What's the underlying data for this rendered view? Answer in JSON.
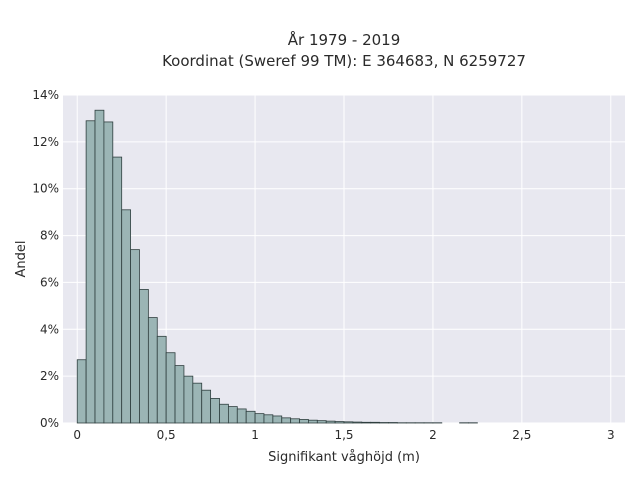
{
  "chart_data": {
    "type": "bar",
    "title": "År 1979 - 2019",
    "subtitle": "Koordinat (Sweref 99 TM): E 364683, N 6259727",
    "xlabel": "Signifikant våghöjd (m)",
    "ylabel": "Andel",
    "xlim": [
      -0.08,
      3.08
    ],
    "ylim": [
      0,
      14
    ],
    "x_ticks": [
      0,
      0.5,
      1,
      1.5,
      2,
      2.5,
      3
    ],
    "x_tick_labels": [
      "0",
      "0,5",
      "1",
      "1,5",
      "2",
      "2,5",
      "3"
    ],
    "y_ticks": [
      0,
      2,
      4,
      6,
      8,
      10,
      12,
      14
    ],
    "y_tick_labels": [
      "0%",
      "2%",
      "4%",
      "6%",
      "8%",
      "10%",
      "12%",
      "14%"
    ],
    "grid": true,
    "bin_width": 0.05,
    "bin_starts": [
      0,
      0.05,
      0.1,
      0.15,
      0.2,
      0.25,
      0.3,
      0.35,
      0.4,
      0.45,
      0.5,
      0.55,
      0.6,
      0.65,
      0.7,
      0.75,
      0.8,
      0.85,
      0.9,
      0.95,
      1.0,
      1.05,
      1.1,
      1.15,
      1.2,
      1.25,
      1.3,
      1.35,
      1.4,
      1.45,
      1.5,
      1.55,
      1.6,
      1.65,
      1.7,
      1.75,
      1.8,
      1.85,
      1.9,
      1.95,
      2.0,
      2.05,
      2.1,
      2.15,
      2.2,
      2.25,
      2.3,
      2.35
    ],
    "values": [
      2.7,
      12.9,
      13.35,
      12.85,
      11.35,
      9.1,
      7.4,
      5.7,
      4.5,
      3.7,
      3.0,
      2.45,
      2.0,
      1.7,
      1.4,
      1.05,
      0.8,
      0.7,
      0.6,
      0.5,
      0.4,
      0.35,
      0.3,
      0.22,
      0.18,
      0.15,
      0.12,
      0.1,
      0.08,
      0.06,
      0.05,
      0.04,
      0.03,
      0.03,
      0.02,
      0.02,
      0.01,
      0.01,
      0.01,
      0.01,
      0.01,
      0.0,
      0.0,
      0.01,
      0.01,
      0.0,
      0.0,
      0.0
    ],
    "colors": {
      "bar_fill": "#9bb5b5",
      "bar_edge": "#2f3f3f",
      "plot_bg": "#e8e8f0",
      "grid": "#ffffff"
    }
  }
}
